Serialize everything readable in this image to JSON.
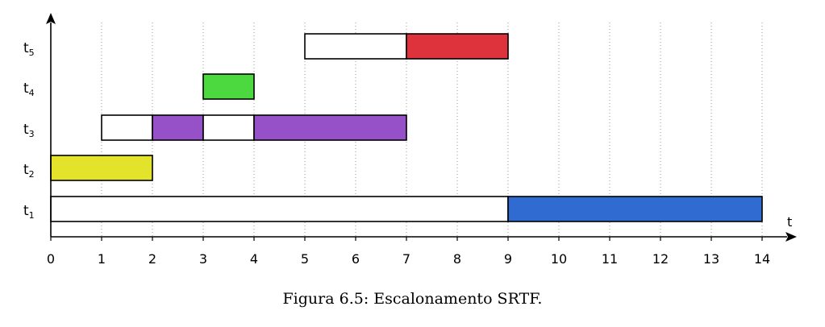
{
  "chart_data": {
    "type": "gantt",
    "caption": "Figura 6.5: Escalonamento SRTF.",
    "xlabel": "t",
    "xlim": [
      0,
      14
    ],
    "xticks": [
      0,
      1,
      2,
      3,
      4,
      5,
      6,
      7,
      8,
      9,
      10,
      11,
      12,
      13,
      14
    ],
    "grid": "vertical-dotted",
    "tasks": [
      {
        "label": "t",
        "sub": "1",
        "segments": [
          {
            "start": 0,
            "end": 9,
            "state": "ready",
            "color": "#ffffff"
          },
          {
            "start": 9,
            "end": 14,
            "state": "running",
            "color": "#2f6bd1"
          }
        ]
      },
      {
        "label": "t",
        "sub": "2",
        "segments": [
          {
            "start": 0,
            "end": 2,
            "state": "running",
            "color": "#e3e32b"
          }
        ]
      },
      {
        "label": "t",
        "sub": "3",
        "segments": [
          {
            "start": 1,
            "end": 2,
            "state": "ready",
            "color": "#ffffff"
          },
          {
            "start": 2,
            "end": 3,
            "state": "running",
            "color": "#9650c8"
          },
          {
            "start": 3,
            "end": 4,
            "state": "ready",
            "color": "#ffffff"
          },
          {
            "start": 4,
            "end": 7,
            "state": "running",
            "color": "#9650c8"
          }
        ]
      },
      {
        "label": "t",
        "sub": "4",
        "segments": [
          {
            "start": 3,
            "end": 4,
            "state": "running",
            "color": "#4cd940"
          }
        ]
      },
      {
        "label": "t",
        "sub": "5",
        "segments": [
          {
            "start": 5,
            "end": 7,
            "state": "ready",
            "color": "#ffffff"
          },
          {
            "start": 7,
            "end": 9,
            "state": "running",
            "color": "#de323c"
          }
        ]
      }
    ]
  }
}
